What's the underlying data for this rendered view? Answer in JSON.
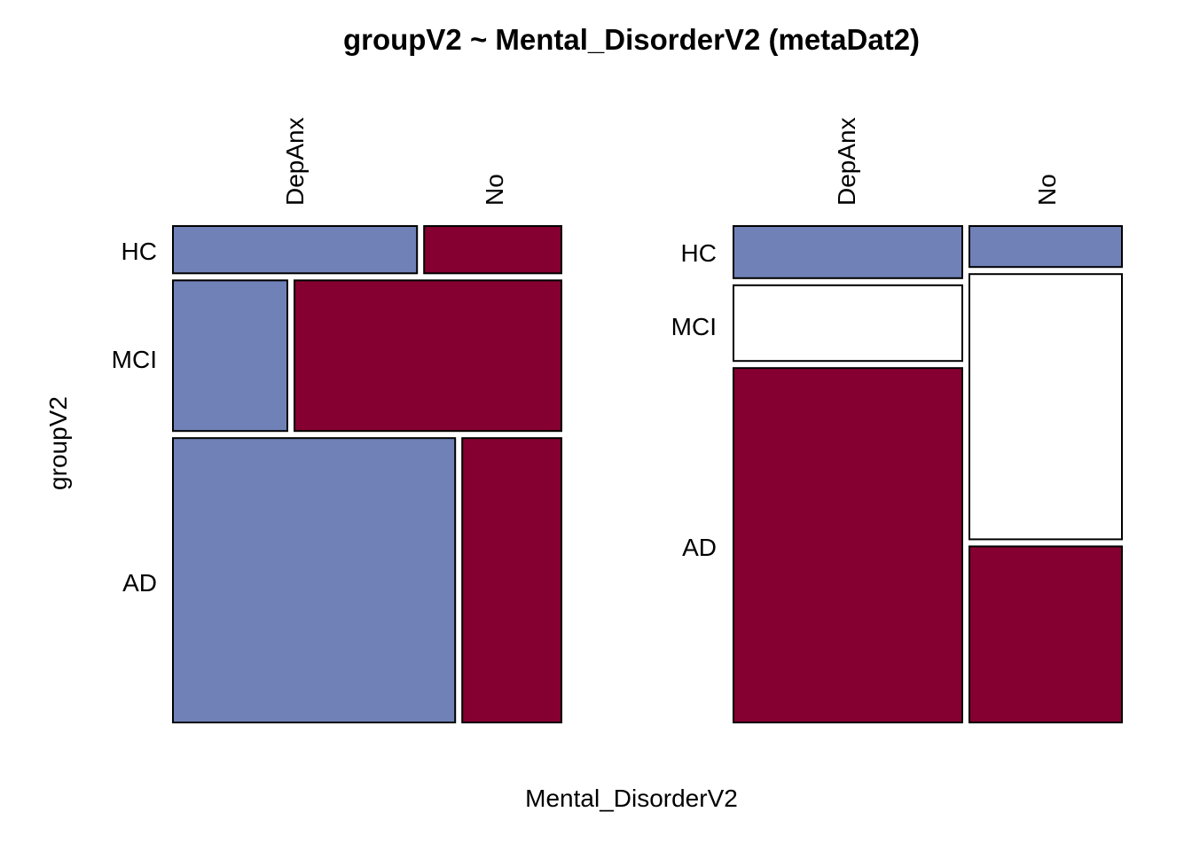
{
  "chart_data": [
    {
      "type": "mosaic",
      "title": "groupV2 ~ Mental_DisorderV2 (metaDat2)",
      "xlabel": "Mental_DisorderV2",
      "ylabel": "groupV2",
      "x_categories": [
        "DepAnx",
        "No"
      ],
      "y_categories": [
        "HC",
        "MCI",
        "AD"
      ],
      "panels": [
        {
          "name": "left",
          "row_share": {
            "HC": 0.095,
            "MCI": 0.303,
            "AD": 0.572
          },
          "cells": [
            {
              "row": "HC",
              "col": "DepAnx",
              "share_of_row": 0.64,
              "fill": "#6f81b6"
            },
            {
              "row": "HC",
              "col": "No",
              "share_of_row": 0.36,
              "fill": "#850030"
            },
            {
              "row": "MCI",
              "col": "DepAnx",
              "share_of_row": 0.3,
              "fill": "#6f81b6"
            },
            {
              "row": "MCI",
              "col": "No",
              "share_of_row": 0.7,
              "fill": "#850030"
            },
            {
              "row": "AD",
              "col": "DepAnx",
              "share_of_row": 0.74,
              "fill": "#6f81b6"
            },
            {
              "row": "AD",
              "col": "No",
              "share_of_row": 0.26,
              "fill": "#850030"
            }
          ]
        },
        {
          "name": "right",
          "col_share": {
            "DepAnx": 0.6,
            "No": 0.4
          },
          "cells": [
            {
              "col": "DepAnx",
              "row": "HC",
              "share_of_col": 0.108,
              "fill": "#6f81b6"
            },
            {
              "col": "DepAnx",
              "row": "MCI",
              "share_of_col": 0.157,
              "fill": "#ffffff"
            },
            {
              "col": "DepAnx",
              "row": "AD",
              "share_of_col": 0.735,
              "fill": "#850030"
            },
            {
              "col": "No",
              "row": "HC",
              "share_of_col": 0.085,
              "fill": "#6f81b6"
            },
            {
              "col": "No",
              "row": "MCI",
              "share_of_col": 0.55,
              "fill": "#ffffff"
            },
            {
              "col": "No",
              "row": "AD",
              "share_of_col": 0.365,
              "fill": "#850030"
            }
          ]
        }
      ]
    }
  ]
}
